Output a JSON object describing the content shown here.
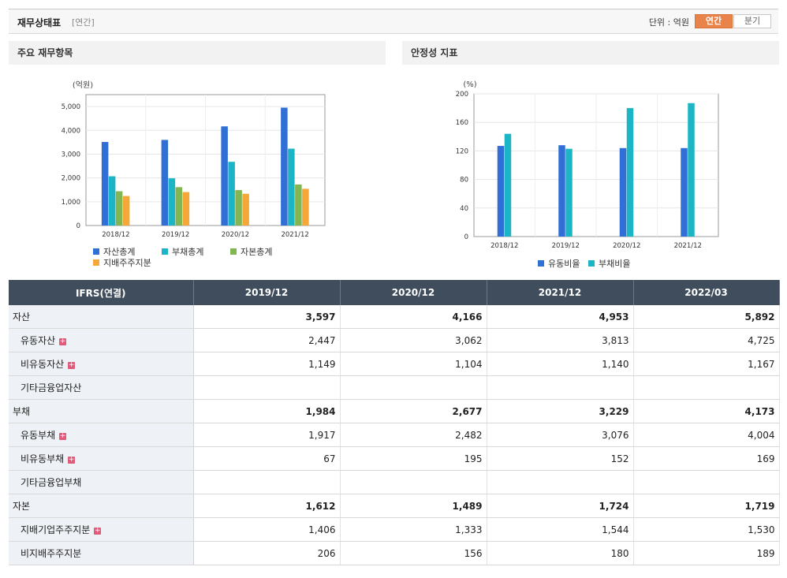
{
  "header": {
    "title": "재무상태표",
    "period": "[연간]",
    "unit": "단위 : 억원",
    "toggle_annual": "연간",
    "toggle_quarter": "분기"
  },
  "panels": {
    "left_title": "주요 재무항목",
    "right_title": "안정성 지표"
  },
  "colors": {
    "blue": "#2f6fd6",
    "teal": "#1bb5c6",
    "green": "#82b653",
    "orange": "#f5a737"
  },
  "chart_data": [
    {
      "type": "bar",
      "ylabel": "(억원)",
      "ylim": [
        0,
        5500
      ],
      "yticks": [
        0,
        1000,
        2000,
        3000,
        4000,
        5000
      ],
      "ytick_labels": [
        "0",
        "1,000",
        "2,000",
        "3,000",
        "4,000",
        "5,000"
      ],
      "categories": [
        "2018/12",
        "2019/12",
        "2020/12",
        "2021/12"
      ],
      "series": [
        {
          "name": "자산총계",
          "color": "#2f6fd6",
          "values": [
            3510,
            3597,
            4166,
            4953
          ]
        },
        {
          "name": "부채총계",
          "color": "#1bb5c6",
          "values": [
            2070,
            1984,
            2677,
            3229
          ]
        },
        {
          "name": "자본총계",
          "color": "#82b653",
          "values": [
            1440,
            1612,
            1489,
            1724
          ]
        },
        {
          "name": "지배주주지분",
          "color": "#f5a737",
          "values": [
            1240,
            1406,
            1333,
            1544
          ]
        }
      ],
      "grid": true,
      "legend": "bottom"
    },
    {
      "type": "bar",
      "ylabel": "(%)",
      "ylim": [
        0,
        200
      ],
      "yticks": [
        0,
        40,
        80,
        120,
        160,
        200
      ],
      "ytick_labels": [
        "0",
        "40",
        "80",
        "120",
        "160",
        "200"
      ],
      "categories": [
        "2018/12",
        "2019/12",
        "2020/12",
        "2021/12"
      ],
      "series": [
        {
          "name": "유동비율",
          "color": "#2f6fd6",
          "values": [
            127,
            128,
            124,
            124
          ]
        },
        {
          "name": "부채비율",
          "color": "#1bb5c6",
          "values": [
            144,
            123,
            180,
            187
          ]
        }
      ],
      "grid": true,
      "legend": "bottom"
    }
  ],
  "table": {
    "headers": [
      "IFRS(연결)",
      "2019/12",
      "2020/12",
      "2021/12",
      "2022/03"
    ],
    "rows": [
      {
        "label": "자산",
        "sub": false,
        "bold": true,
        "plus": false,
        "values": [
          "3,597",
          "4,166",
          "4,953",
          "5,892"
        ]
      },
      {
        "label": "유동자산",
        "sub": true,
        "bold": false,
        "plus": true,
        "values": [
          "2,447",
          "3,062",
          "3,813",
          "4,725"
        ]
      },
      {
        "label": "비유동자산",
        "sub": true,
        "bold": false,
        "plus": true,
        "values": [
          "1,149",
          "1,104",
          "1,140",
          "1,167"
        ]
      },
      {
        "label": "기타금융업자산",
        "sub": true,
        "bold": false,
        "plus": false,
        "values": [
          "",
          "",
          "",
          ""
        ]
      },
      {
        "label": "부채",
        "sub": false,
        "bold": true,
        "plus": false,
        "values": [
          "1,984",
          "2,677",
          "3,229",
          "4,173"
        ]
      },
      {
        "label": "유동부채",
        "sub": true,
        "bold": false,
        "plus": true,
        "values": [
          "1,917",
          "2,482",
          "3,076",
          "4,004"
        ]
      },
      {
        "label": "비유동부채",
        "sub": true,
        "bold": false,
        "plus": true,
        "values": [
          "67",
          "195",
          "152",
          "169"
        ]
      },
      {
        "label": "기타금융업부채",
        "sub": true,
        "bold": false,
        "plus": false,
        "values": [
          "",
          "",
          "",
          ""
        ]
      },
      {
        "label": "자본",
        "sub": false,
        "bold": true,
        "plus": false,
        "values": [
          "1,612",
          "1,489",
          "1,724",
          "1,719"
        ]
      },
      {
        "label": "지배기업주주지분",
        "sub": true,
        "bold": false,
        "plus": true,
        "values": [
          "1,406",
          "1,333",
          "1,544",
          "1,530"
        ]
      },
      {
        "label": "비지배주주지분",
        "sub": true,
        "bold": false,
        "plus": false,
        "values": [
          "206",
          "156",
          "180",
          "189"
        ]
      }
    ]
  }
}
